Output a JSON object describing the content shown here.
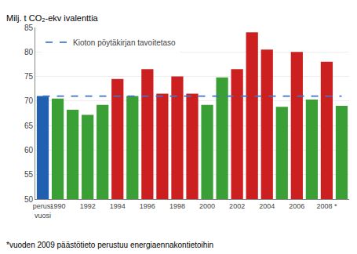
{
  "chart_data": {
    "type": "bar",
    "ylabel": "Milj. t CO₂-ekv ivalenttia",
    "annotations": [
      "*vuoden 2009 päästötieto perustuu energiaennakontietoihin"
    ],
    "categories": [
      "perus-\nvuosi",
      "1990",
      null,
      "1992",
      null,
      "1994",
      null,
      "1996",
      null,
      "1998",
      null,
      "2000",
      null,
      "2002",
      null,
      "2004",
      null,
      "2006",
      null,
      "2008 *",
      null
    ],
    "series": [
      {
        "type": "bar",
        "values": [
          71.0,
          70.5,
          68.2,
          67.2,
          69.2,
          74.5,
          71.0,
          76.5,
          71.5,
          75.0,
          71.5,
          69.2,
          74.8,
          76.5,
          84.0,
          80.5,
          68.8,
          80.0,
          70.3,
          78.0,
          69.0
        ],
        "colors": [
          "#2060b0",
          "#3aa035",
          "#3aa035",
          "#3aa035",
          "#3aa035",
          "#cc2020",
          "#3aa035",
          "#cc2020",
          "#cc2020",
          "#cc2020",
          "#cc2020",
          "#3aa035",
          "#3aa035",
          "#cc2020",
          "#cc2020",
          "#cc2020",
          "#3aa035",
          "#cc2020",
          "#3aa035",
          "#cc2020",
          "#3aa035"
        ]
      },
      {
        "type": "line",
        "name": "Kioton pöytäkirjan tavoitetaso",
        "color": "#4472c4",
        "line_style": "dashed",
        "values": [
          71.0,
          71.0,
          71.0,
          71.0,
          71.0,
          71.0,
          71.0,
          71.0,
          71.0,
          71.0,
          71.0,
          71.0,
          71.0,
          71.0,
          71.0,
          71.0,
          71.0,
          71.0,
          71.0,
          71.0,
          71.0
        ]
      }
    ],
    "ylim": [
      50,
      85
    ],
    "yticks": [
      50,
      55,
      60,
      65,
      70,
      75,
      80,
      85
    ],
    "grid": true,
    "legend": "upper left"
  }
}
